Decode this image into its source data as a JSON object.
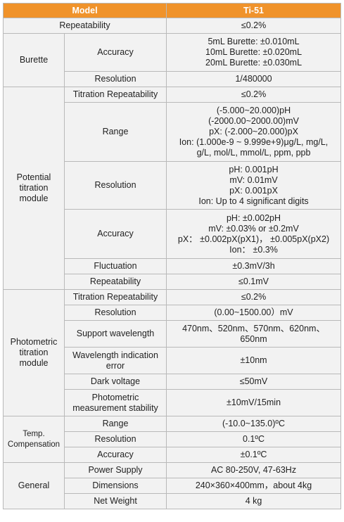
{
  "header": {
    "col1": "Model",
    "col2": "Ti-51"
  },
  "repeatability": {
    "label": "Repeatability",
    "value": "≤0.2%"
  },
  "burette": {
    "group": "Burette",
    "accuracy": {
      "label": "Accuracy",
      "lines": [
        "5mL Burette: ±0.010mL",
        "10mL Burette: ±0.020mL",
        "20mL Burette: ±0.030mL"
      ]
    },
    "resolution": {
      "label": "Resolution",
      "value": "1/480000"
    }
  },
  "potential": {
    "group_lines": [
      "Potential",
      "titration",
      "module"
    ],
    "titration_repeatability": {
      "label": "Titration Repeatability",
      "value": "≤0.2%"
    },
    "range": {
      "label": "Range",
      "lines": [
        "(-5.000~20.000)pH",
        "(-2000.00~2000.00)mV",
        "pX: (-2.000~20.000)pX",
        "Ion: (1.000e-9 ~ 9.999e+9)μg/L, mg/L,",
        "g/L, mol/L, mmol/L, ppm, ppb"
      ]
    },
    "resolution": {
      "label": "Resolution",
      "lines": [
        "pH: 0.001pH",
        "mV: 0.01mV",
        "pX: 0.001pX",
        "Ion: Up to 4 significant digits"
      ]
    },
    "accuracy": {
      "label": "Accuracy",
      "lines": [
        "pH: ±0.002pH",
        "mV: ±0.03% or ±0.2mV",
        "pX： ±0.002pX(pX1)， ±0.005pX(pX2)",
        "Ion： ±0.3%"
      ]
    },
    "fluctuation": {
      "label": "Fluctuation",
      "value": "±0.3mV/3h"
    },
    "repeatability": {
      "label": "Repeatability",
      "value": "≤0.1mV"
    }
  },
  "photometric": {
    "group_lines": [
      "Photometric",
      "titration",
      "module"
    ],
    "titration_repeatability": {
      "label": "Titration Repeatability",
      "value": "≤0.2%"
    },
    "resolution": {
      "label": "Resolution",
      "value": "(0.00~1500.00）mV"
    },
    "support_wavelength": {
      "label": "Support wavelength",
      "lines": [
        "470nm、520nm、570nm、620nm、",
        "650nm"
      ]
    },
    "wavelength_error": {
      "label_lines": [
        "Wavelength indication",
        "error"
      ],
      "value": "±10nm"
    },
    "dark_voltage": {
      "label": "Dark voltage",
      "value": "≤50mV"
    },
    "stability": {
      "label_lines": [
        "Photometric",
        "measurement stability"
      ],
      "value": "±10mV/15min"
    }
  },
  "temp": {
    "group_lines": [
      "Temp.",
      "Compensation"
    ],
    "range": {
      "label": "Range",
      "value": "(-10.0~135.0)ºC"
    },
    "resolution": {
      "label": "Resolution",
      "value": "0.1ºC"
    },
    "accuracy": {
      "label": "Accuracy",
      "value": "±0.1ºC"
    }
  },
  "general": {
    "group": "General",
    "power_supply": {
      "label": "Power Supply",
      "value": "AC 80-250V, 47-63Hz"
    },
    "dimensions": {
      "label": "Dimensions",
      "value": "240×360×400mm，about 4kg"
    },
    "net_weight": {
      "label": "Net Weight",
      "value": "4 kg"
    }
  }
}
